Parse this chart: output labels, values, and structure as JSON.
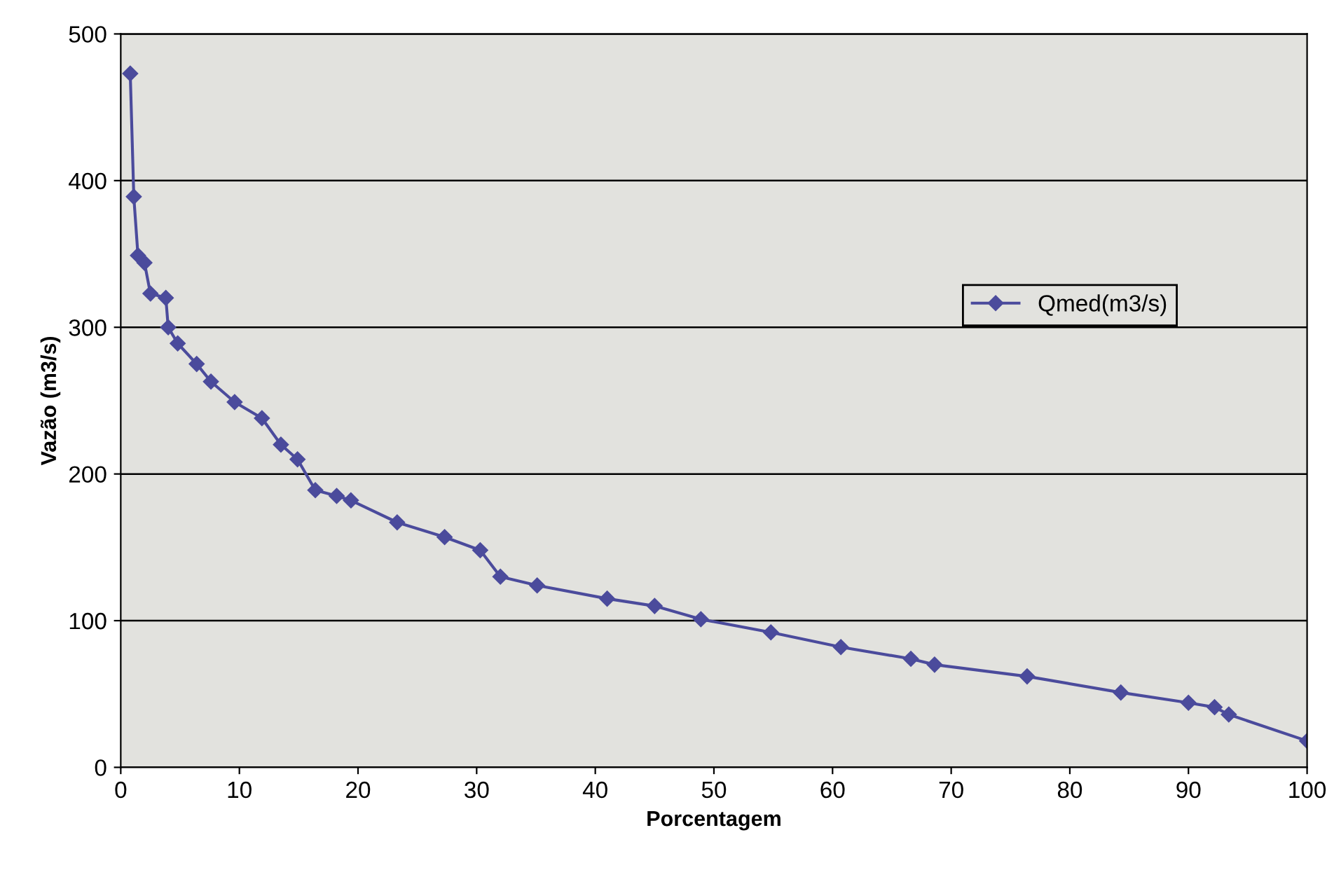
{
  "chart_data": {
    "type": "line",
    "xlabel": "Porcentagem",
    "ylabel": "Vazão (m3/s)",
    "x": [
      0.8,
      1.1,
      1.45,
      2.0,
      2.5,
      3.8,
      4.0,
      4.8,
      6.4,
      7.6,
      9.6,
      11.9,
      13.5,
      14.9,
      16.4,
      18.2,
      19.4,
      23.3,
      27.3,
      30.3,
      32.0,
      35.1,
      41.0,
      45.0,
      48.9,
      54.8,
      60.7,
      66.6,
      68.6,
      76.4,
      84.3,
      90.0,
      92.2,
      93.4,
      100
    ],
    "series": [
      {
        "name": "Qmed(m3/s)",
        "color": "#4b4b9c",
        "values": [
          473,
          389,
          349,
          344,
          323,
          320,
          300,
          289,
          275,
          263,
          249,
          238,
          220,
          210,
          189,
          185,
          182,
          167,
          157,
          148,
          130,
          124,
          115,
          110,
          101,
          92,
          82,
          74,
          70,
          62,
          51,
          44,
          41,
          36,
          18
        ]
      }
    ],
    "xlim": [
      0,
      100
    ],
    "xticks": [
      0,
      10,
      20,
      30,
      40,
      50,
      60,
      70,
      80,
      90,
      100
    ],
    "ylim": [
      0,
      500
    ],
    "yticks": [
      0,
      100,
      200,
      300,
      400,
      500
    ],
    "grid": "y",
    "legend": "right",
    "marker": "diamond",
    "line_style": "solid"
  }
}
